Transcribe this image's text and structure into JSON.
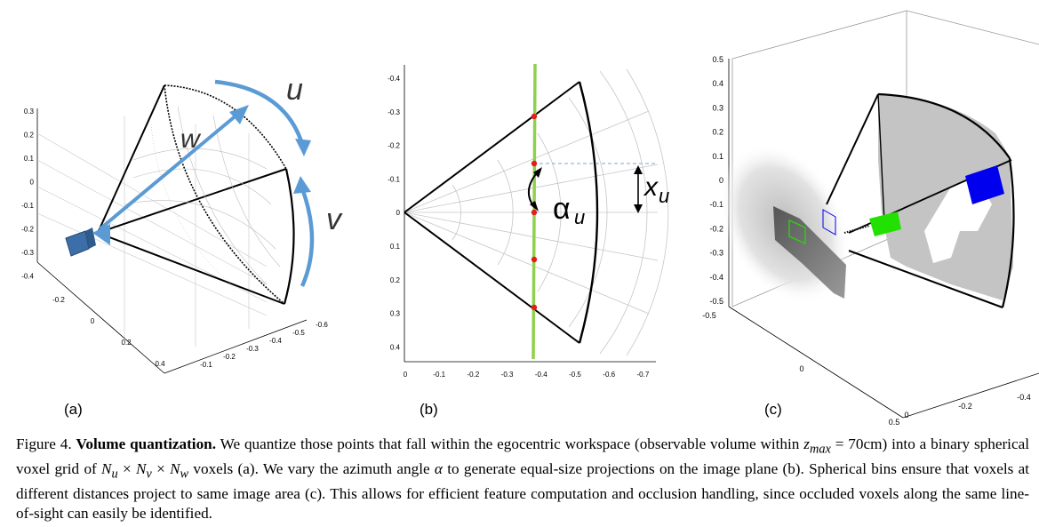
{
  "figure": {
    "panels": [
      {
        "label": "(a)",
        "ticks_left": [
          "0.3",
          "0.2",
          "0.1",
          "0",
          "-0.1",
          "-0.2",
          "-0.3",
          "-0.4"
        ],
        "ticks_front": [
          "-0.2",
          "0",
          "0.2",
          "0.4"
        ],
        "ticks_right": [
          "-0.6",
          "-0.5",
          "-0.4",
          "-0.3",
          "-0.2",
          "-0.1"
        ],
        "annotations": [
          "u",
          "w",
          "v"
        ]
      },
      {
        "label": "(b)",
        "ticks_y": [
          "-0.4",
          "-0.3",
          "-0.2",
          "-0.1",
          "0",
          "0.1",
          "0.2",
          "0.3",
          "0.4"
        ],
        "ticks_x": [
          "0",
          "-0.1",
          "-0.2",
          "-0.3",
          "-0.4",
          "-0.5",
          "-0.6",
          "-0.7"
        ],
        "annotations": [
          "α",
          "u",
          "x",
          "u"
        ]
      },
      {
        "label": "(c)",
        "ticks_z": [
          "0.5",
          "0.4",
          "0.3",
          "0.2",
          "0.1",
          "0",
          "-0.1",
          "-0.2",
          "-0.3",
          "-0.4",
          "-0.5"
        ],
        "ticks_x": [
          "-0.5",
          "0",
          "0.5"
        ],
        "ticks_y": [
          "0",
          "-0.2",
          "-0.4"
        ]
      }
    ]
  },
  "caption": {
    "label": "Figure 4.",
    "title": "Volume quantization.",
    "t1": " We quantize those points that fall within the egocentric workspace (observable volume within ",
    "m1": "z",
    "m1_sub": "max",
    "t2": " = 70cm) into a binary spherical voxel grid of ",
    "m2": "N",
    "m2_sub": "u",
    "t3": " × ",
    "m3": "N",
    "m3_sub": "v",
    "t4": " × ",
    "m4": "N",
    "m4_sub": "w",
    "t5": " voxels (a). We vary the azimuth angle ",
    "m5": "α",
    "t6": " to generate equal-size projections on the image plane (b). Spherical bins ensure that voxels at different distances project to same image area (c). This allows for efficient feature computation and occlusion handling, since occluded voxels along the same line-of-sight can easily be identified."
  },
  "colors": {
    "arrow_blue": "#5b9bd5",
    "line_green": "#8fd14f",
    "dot_red": "#e0201b",
    "voxel_green": "#22e000",
    "voxel_blue": "#0000ee"
  }
}
